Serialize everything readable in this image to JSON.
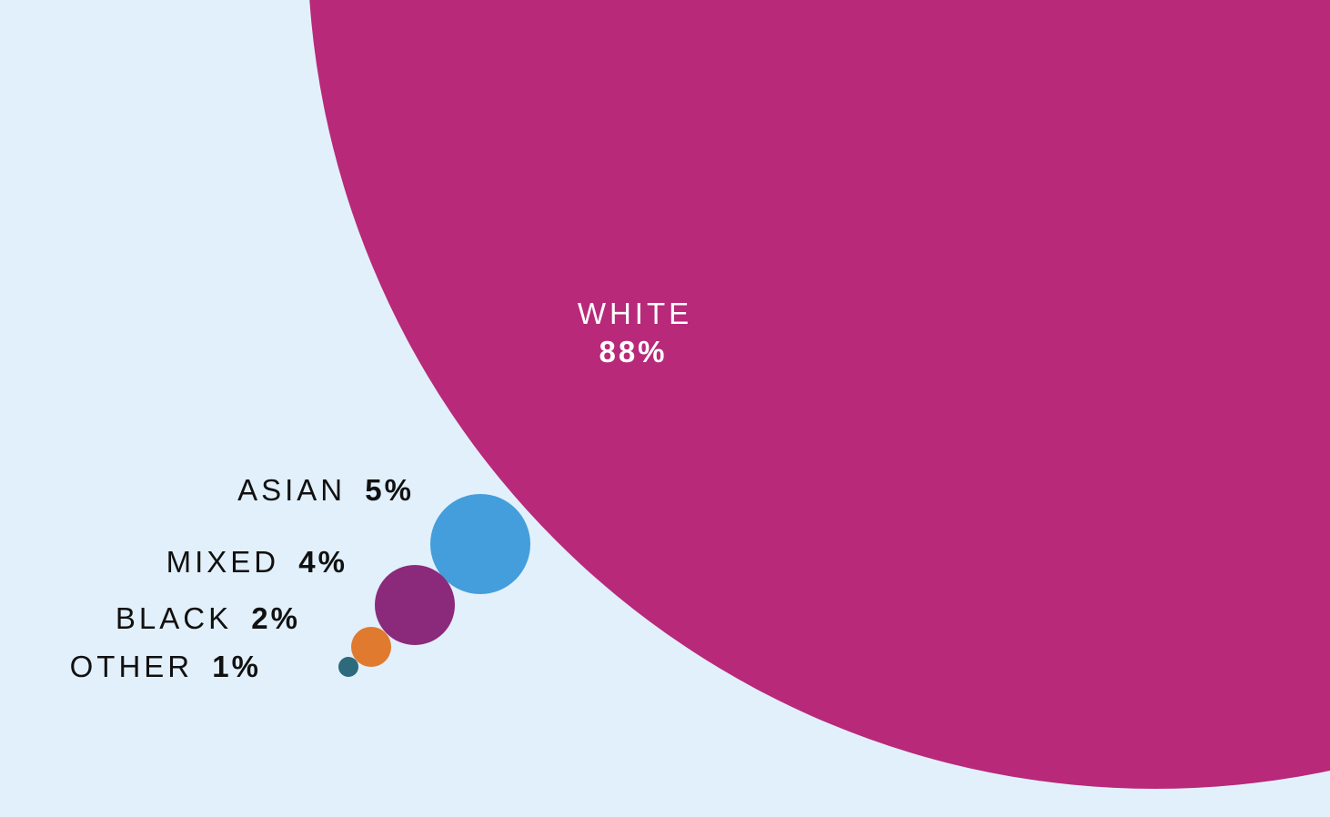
{
  "chart_data": {
    "type": "bubble",
    "title": "",
    "series": [
      {
        "label": "WHITE",
        "value_label": "88%",
        "value": 88,
        "color": "#b8297a"
      },
      {
        "label": "ASIAN",
        "value_label": "5%",
        "value": 5,
        "color": "#449edb"
      },
      {
        "label": "MIXED",
        "value_label": "4%",
        "value": 4,
        "color": "#8b2a7b"
      },
      {
        "label": "BLACK",
        "value_label": "2%",
        "value": 2,
        "color": "#e07a2e"
      },
      {
        "label": "OTHER",
        "value_label": "1%",
        "value": 1,
        "color": "#2c6a7c"
      }
    ]
  },
  "colors": {
    "background": "#e2f0fb",
    "label_dark": "#111111",
    "label_light": "#ffffff"
  }
}
